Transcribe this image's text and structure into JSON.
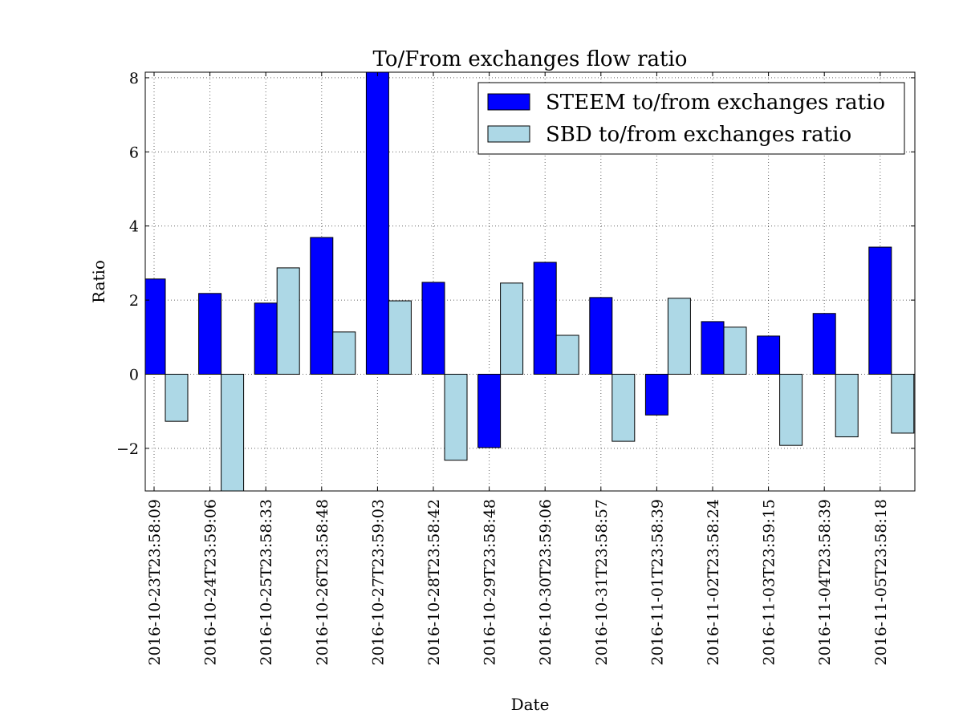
{
  "chart_data": {
    "type": "bar",
    "title": "To/From exchanges flow ratio",
    "xlabel": "Date",
    "ylabel": "Ratio",
    "ylim": [
      -3.15,
      8.15
    ],
    "yticks": [
      -2,
      0,
      2,
      4,
      6,
      8
    ],
    "ytick_labels": [
      "−2",
      "0",
      "2",
      "4",
      "6",
      "8"
    ],
    "grid": true,
    "legend_position": "top-right",
    "categories": [
      "2016-10-23T23:58:09",
      "2016-10-24T23:59:06",
      "2016-10-25T23:58:33",
      "2016-10-26T23:58:48",
      "2016-10-27T23:59:03",
      "2016-10-28T23:58:42",
      "2016-10-29T23:58:48",
      "2016-10-30T23:59:06",
      "2016-10-31T23:58:57",
      "2016-11-01T23:58:39",
      "2016-11-02T23:58:24",
      "2016-11-03T23:59:15",
      "2016-11-04T23:58:39",
      "2016-11-05T23:58:18"
    ],
    "series": [
      {
        "name": "STEEM to/from exchanges ratio",
        "color": "#0000ff",
        "values": [
          2.57,
          2.18,
          1.92,
          3.69,
          8.2,
          2.48,
          -1.98,
          3.02,
          2.07,
          -1.1,
          1.42,
          1.03,
          1.64,
          3.43
        ]
      },
      {
        "name": "SBD to/from exchanges ratio",
        "color": "#add8e6",
        "values": [
          -1.27,
          -3.3,
          2.87,
          1.14,
          1.98,
          -2.32,
          2.46,
          1.05,
          -1.81,
          2.05,
          1.27,
          -1.92,
          -1.69,
          -1.59
        ]
      }
    ]
  }
}
